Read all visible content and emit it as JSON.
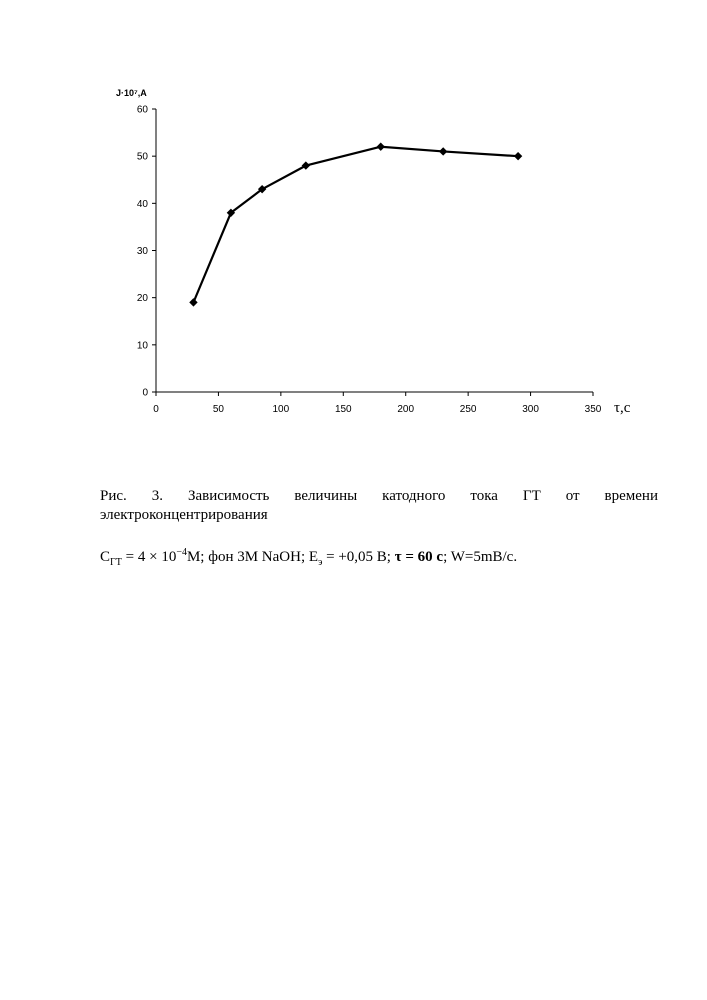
{
  "chart_data": {
    "type": "line",
    "title": "",
    "ylabel": "J·10⁷,A",
    "xlabel": "τ,c",
    "xlim": [
      0,
      350
    ],
    "ylim": [
      0,
      60
    ],
    "xticks": [
      0,
      50,
      100,
      150,
      200,
      250,
      300,
      350
    ],
    "yticks": [
      0,
      10,
      20,
      30,
      40,
      50,
      60
    ],
    "grid": false,
    "legend": "none",
    "series": [
      {
        "x": [
          30,
          60,
          85,
          120,
          180,
          230,
          290
        ],
        "y": [
          19,
          38,
          43,
          48,
          52,
          51,
          50
        ]
      }
    ],
    "line_color": "#000000",
    "marker": "diamond"
  },
  "caption": {
    "line1": "Рис.  3.     Зависимость  величины  катодного  тока  ГТ  от  времени",
    "line2": "электроконцентрирования"
  },
  "conditions": {
    "c_symbol": "C",
    "c_sub": "ГТ",
    "c_value_pre": " = 4 × 10",
    "c_exp": "−4",
    "c_value_post": "M; фон 3M NaOH;  ",
    "e_symbol": "E",
    "e_sub": "э",
    "e_value": " = +0,05 B; ",
    "tau_part": "τ = 60 c",
    "w_part": "; W=5mB/c."
  }
}
